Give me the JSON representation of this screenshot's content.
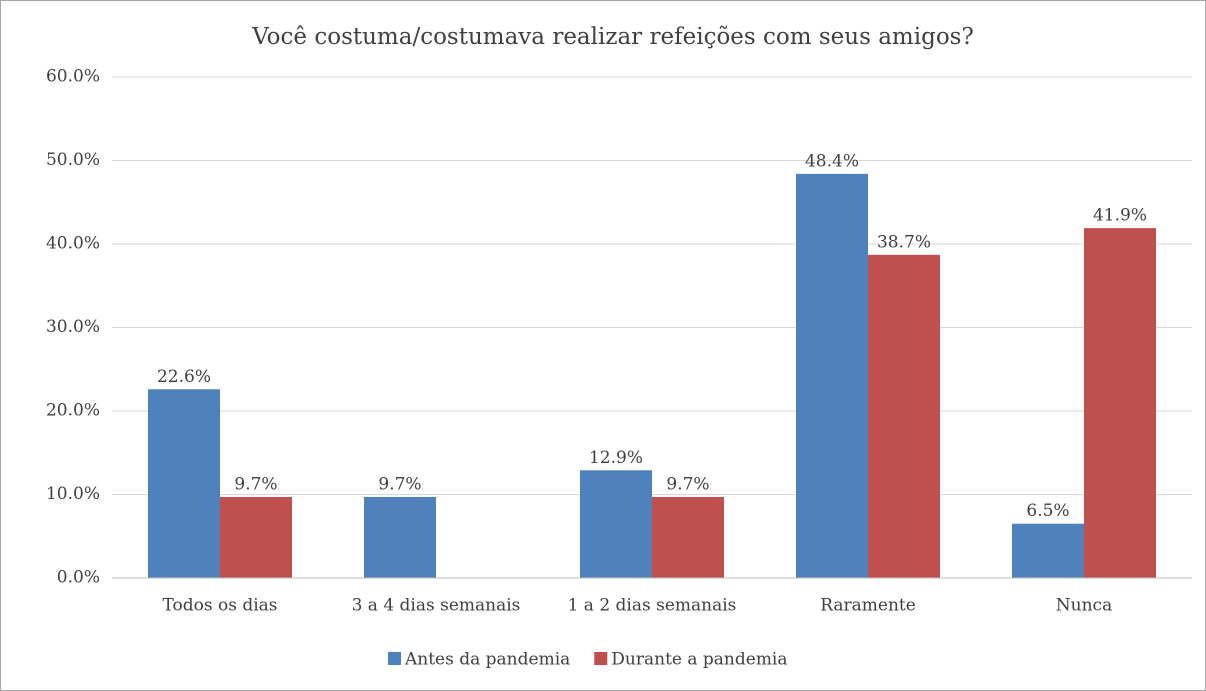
{
  "chart_data": {
    "type": "bar",
    "title": "Você costuma/costumava realizar refeições com seus amigos?",
    "categories": [
      "Todos os dias",
      "3 a 4 dias semanais",
      "1 a 2 dias semanais",
      "Raramente",
      "Nunca"
    ],
    "series": [
      {
        "name": "Antes da pandemia",
        "color": "#4f81bd",
        "values": [
          22.6,
          9.7,
          12.9,
          48.4,
          6.5
        ],
        "value_labels": [
          "22.6%",
          "9.7%",
          "12.9%",
          "48.4%",
          "6.5%"
        ]
      },
      {
        "name": "Durante a pandemia",
        "color": "#c0504d",
        "values": [
          9.7,
          null,
          9.7,
          38.7,
          41.9
        ],
        "value_labels": [
          "9.7%",
          null,
          "9.7%",
          "38.7%",
          "41.9%"
        ]
      }
    ],
    "ylim": [
      0,
      60
    ],
    "yticks": [
      {
        "value": 0,
        "label": "0.0%"
      },
      {
        "value": 10,
        "label": "10.0%"
      },
      {
        "value": 20,
        "label": "20.0%"
      },
      {
        "value": 30,
        "label": "30.0%"
      },
      {
        "value": 40,
        "label": "40.0%"
      },
      {
        "value": 50,
        "label": "50.0%"
      },
      {
        "value": 60,
        "label": "60.0%"
      }
    ],
    "grid": true,
    "legend": "bottom"
  }
}
